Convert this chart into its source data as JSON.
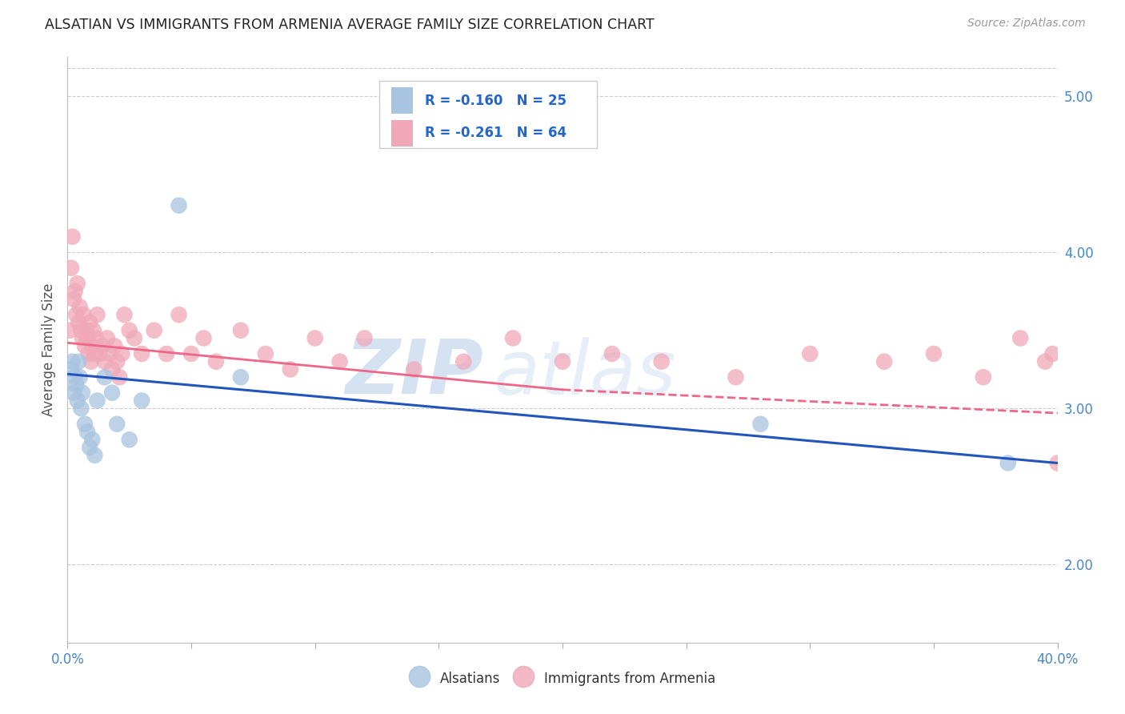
{
  "title": "ALSATIAN VS IMMIGRANTS FROM ARMENIA AVERAGE FAMILY SIZE CORRELATION CHART",
  "source": "Source: ZipAtlas.com",
  "ylabel": "Average Family Size",
  "legend_blue_r": "R = -0.160",
  "legend_blue_n": "N = 25",
  "legend_pink_r": "R = -0.261",
  "legend_pink_n": "N = 64",
  "legend_label_blue": "Alsatians",
  "legend_label_pink": "Immigrants from Armenia",
  "blue_color": "#a8c4e0",
  "pink_color": "#f0a8b8",
  "blue_line_color": "#2255bb",
  "pink_line_color": "#ee6688",
  "watermark_zip": "ZIP",
  "watermark_atlas": "atlas",
  "right_yticks": [
    2.0,
    3.0,
    4.0,
    5.0
  ],
  "alsatians_x": [
    0.15,
    0.2,
    0.25,
    0.3,
    0.35,
    0.4,
    0.45,
    0.5,
    0.55,
    0.6,
    0.7,
    0.8,
    0.9,
    1.0,
    1.1,
    1.2,
    1.5,
    1.8,
    2.0,
    2.5,
    3.0,
    4.5,
    7.0,
    28.0,
    38.0
  ],
  "alsatians_y": [
    3.25,
    3.3,
    3.1,
    3.2,
    3.15,
    3.05,
    3.3,
    3.2,
    3.0,
    3.1,
    2.9,
    2.85,
    2.75,
    2.8,
    2.7,
    3.05,
    3.2,
    3.1,
    2.9,
    2.8,
    3.05,
    4.3,
    3.2,
    2.9,
    2.65
  ],
  "armenia_x": [
    0.1,
    0.15,
    0.2,
    0.25,
    0.3,
    0.35,
    0.4,
    0.45,
    0.5,
    0.55,
    0.6,
    0.65,
    0.7,
    0.75,
    0.8,
    0.85,
    0.9,
    0.95,
    1.0,
    1.05,
    1.1,
    1.15,
    1.2,
    1.3,
    1.4,
    1.5,
    1.6,
    1.7,
    1.8,
    1.9,
    2.0,
    2.1,
    2.2,
    2.3,
    2.5,
    2.7,
    3.0,
    3.5,
    4.0,
    4.5,
    5.0,
    5.5,
    6.0,
    7.0,
    8.0,
    9.0,
    10.0,
    11.0,
    12.0,
    14.0,
    16.0,
    18.0,
    20.0,
    22.0,
    24.0,
    27.0,
    30.0,
    33.0,
    35.0,
    37.0,
    38.5,
    39.5,
    39.8,
    40.0
  ],
  "armenia_y": [
    3.5,
    3.9,
    4.1,
    3.7,
    3.75,
    3.6,
    3.8,
    3.55,
    3.65,
    3.5,
    3.45,
    3.6,
    3.4,
    3.5,
    3.45,
    3.35,
    3.55,
    3.3,
    3.4,
    3.5,
    3.35,
    3.45,
    3.6,
    3.35,
    3.4,
    3.3,
    3.45,
    3.35,
    3.25,
    3.4,
    3.3,
    3.2,
    3.35,
    3.6,
    3.5,
    3.45,
    3.35,
    3.5,
    3.35,
    3.6,
    3.35,
    3.45,
    3.3,
    3.5,
    3.35,
    3.25,
    3.45,
    3.3,
    3.45,
    3.25,
    3.3,
    3.45,
    3.3,
    3.35,
    3.3,
    3.2,
    3.35,
    3.3,
    3.35,
    3.2,
    3.45,
    3.3,
    3.35,
    2.65
  ],
  "xmin": 0.0,
  "xmax": 40.0,
  "ymin": 1.5,
  "ymax": 5.25,
  "blue_trend_x0": 0.0,
  "blue_trend_x1": 40.0,
  "blue_trend_y0": 3.22,
  "blue_trend_y1": 2.65,
  "pink_solid_x0": 0.0,
  "pink_solid_x1": 20.0,
  "pink_solid_y0": 3.42,
  "pink_solid_y1": 3.12,
  "pink_dash_x0": 20.0,
  "pink_dash_x1": 40.0,
  "pink_dash_y0": 3.12,
  "pink_dash_y1": 2.97
}
